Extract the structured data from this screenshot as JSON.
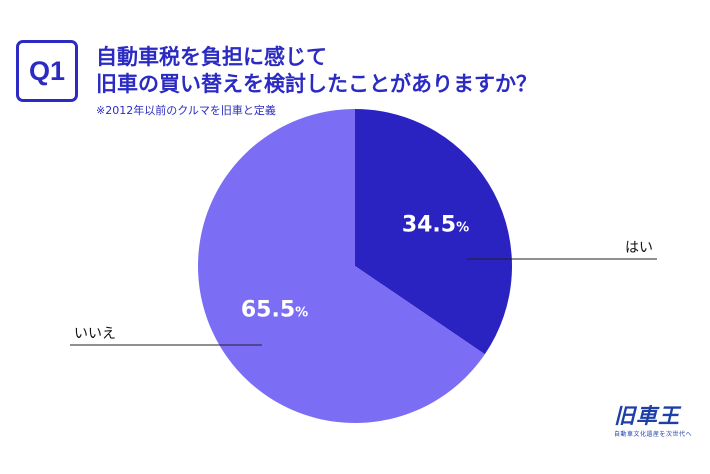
{
  "badge": "Q1",
  "title_lines": [
    "自動車税を負担に感じて",
    "旧車の買い替えを検討したことがありますか？"
  ],
  "note": "※2012年以前のクルマを旧車と定義",
  "colors": {
    "accent": "#2b2bc4",
    "yes": "#2b22c2",
    "no": "#7b6ef5",
    "label": "#ffffff",
    "leader": "#222222"
  },
  "chart_data": {
    "type": "pie",
    "title": "自動車税を負担に感じて旧車の買い替えを検討したことがありますか？",
    "slices": [
      {
        "label": "はい",
        "value": 34.5,
        "display_value": "34.5",
        "unit": "%"
      },
      {
        "label": "いいえ",
        "value": 65.5,
        "display_value": "65.5",
        "unit": "%"
      }
    ],
    "start": "12 o'clock",
    "direction": "clockwise",
    "legend": "none (leader-line labels)"
  },
  "logo": {
    "name": "旧車王",
    "tagline": "自動車文化遺産を次世代へ"
  }
}
